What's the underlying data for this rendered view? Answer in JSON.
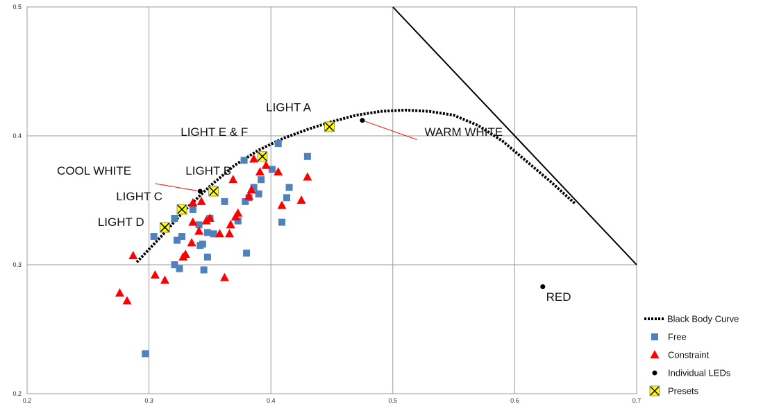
{
  "chart_data": {
    "type": "scatter",
    "xlim": [
      0.2,
      0.7
    ],
    "ylim": [
      0.2,
      0.5
    ],
    "x_ticks": [
      "0.2",
      "0.3",
      "0.4",
      "0.5",
      "0.6",
      "0.7"
    ],
    "y_ticks": [
      "0.2",
      "0.3",
      "0.4",
      "0.5"
    ],
    "grid": true,
    "legend_position": "bottom-right",
    "legend": [
      "Black Body Curve",
      "Free",
      "Constraint",
      "Individual LEDs",
      "Presets"
    ],
    "series": [
      {
        "name": "Black Body Curve",
        "kind": "dotted-line",
        "color": "#000000",
        "points": [
          [
            0.29,
            0.302
          ],
          [
            0.31,
            0.322
          ],
          [
            0.33,
            0.343
          ],
          [
            0.35,
            0.361
          ],
          [
            0.37,
            0.377
          ],
          [
            0.39,
            0.389
          ],
          [
            0.41,
            0.398
          ],
          [
            0.43,
            0.405
          ],
          [
            0.45,
            0.411
          ],
          [
            0.47,
            0.416
          ],
          [
            0.49,
            0.419
          ],
          [
            0.51,
            0.42
          ],
          [
            0.53,
            0.419
          ],
          [
            0.55,
            0.416
          ],
          [
            0.57,
            0.408
          ],
          [
            0.59,
            0.396
          ],
          [
            0.61,
            0.38
          ],
          [
            0.63,
            0.364
          ],
          [
            0.65,
            0.347
          ]
        ]
      },
      {
        "name": "Free",
        "kind": "square",
        "color": "#4f81bd",
        "points": [
          [
            0.297,
            0.231
          ],
          [
            0.304,
            0.322
          ],
          [
            0.321,
            0.3
          ],
          [
            0.321,
            0.336
          ],
          [
            0.323,
            0.319
          ],
          [
            0.325,
            0.297
          ],
          [
            0.327,
            0.322
          ],
          [
            0.336,
            0.343
          ],
          [
            0.341,
            0.331
          ],
          [
            0.342,
            0.315
          ],
          [
            0.344,
            0.316
          ],
          [
            0.345,
            0.296
          ],
          [
            0.348,
            0.306
          ],
          [
            0.348,
            0.325
          ],
          [
            0.35,
            0.336
          ],
          [
            0.353,
            0.324
          ],
          [
            0.362,
            0.349
          ],
          [
            0.373,
            0.334
          ],
          [
            0.378,
            0.381
          ],
          [
            0.379,
            0.349
          ],
          [
            0.38,
            0.309
          ],
          [
            0.382,
            0.352
          ],
          [
            0.386,
            0.36
          ],
          [
            0.39,
            0.355
          ],
          [
            0.392,
            0.366
          ],
          [
            0.401,
            0.374
          ],
          [
            0.406,
            0.394
          ],
          [
            0.409,
            0.333
          ],
          [
            0.413,
            0.352
          ],
          [
            0.415,
            0.36
          ],
          [
            0.43,
            0.384
          ]
        ]
      },
      {
        "name": "Constraint",
        "kind": "triangle",
        "color": "#ff0000",
        "points": [
          [
            0.276,
            0.278
          ],
          [
            0.282,
            0.272
          ],
          [
            0.287,
            0.307
          ],
          [
            0.305,
            0.292
          ],
          [
            0.313,
            0.288
          ],
          [
            0.328,
            0.306
          ],
          [
            0.33,
            0.308
          ],
          [
            0.335,
            0.317
          ],
          [
            0.336,
            0.333
          ],
          [
            0.336,
            0.348
          ],
          [
            0.341,
            0.326
          ],
          [
            0.343,
            0.349
          ],
          [
            0.347,
            0.334
          ],
          [
            0.35,
            0.336
          ],
          [
            0.354,
            0.358
          ],
          [
            0.358,
            0.324
          ],
          [
            0.362,
            0.29
          ],
          [
            0.366,
            0.324
          ],
          [
            0.367,
            0.331
          ],
          [
            0.369,
            0.366
          ],
          [
            0.371,
            0.337
          ],
          [
            0.373,
            0.34
          ],
          [
            0.382,
            0.353
          ],
          [
            0.384,
            0.358
          ],
          [
            0.386,
            0.382
          ],
          [
            0.391,
            0.372
          ],
          [
            0.396,
            0.377
          ],
          [
            0.406,
            0.372
          ],
          [
            0.409,
            0.346
          ],
          [
            0.425,
            0.35
          ],
          [
            0.43,
            0.368
          ]
        ]
      },
      {
        "name": "Individual LEDs",
        "kind": "dot",
        "color": "#000000",
        "points": [
          [
            0.342,
            0.357
          ],
          [
            0.475,
            0.412
          ],
          [
            0.623,
            0.283
          ]
        ]
      },
      {
        "name": "Presets",
        "kind": "x-square",
        "color": "#ffff00",
        "points": [
          [
            0.313,
            0.329
          ],
          [
            0.327,
            0.343
          ],
          [
            0.353,
            0.357
          ],
          [
            0.393,
            0.384
          ],
          [
            0.448,
            0.407
          ]
        ]
      }
    ],
    "boundary_line": [
      [
        0.5,
        0.5
      ],
      [
        0.7,
        0.3
      ]
    ],
    "annotations": [
      {
        "text": "LIGHT A",
        "x": 0.396,
        "y": 0.419,
        "anchor": "start",
        "color": "#111111"
      },
      {
        "text": "LIGHT E & F",
        "x": 0.326,
        "y": 0.4,
        "anchor": "start",
        "color": "#111111"
      },
      {
        "text": "COOL WHITE",
        "x": 0.255,
        "y": 0.37,
        "anchor": "middle",
        "color": "#111111"
      },
      {
        "text": "LIGHT B",
        "x": 0.33,
        "y": 0.37,
        "anchor": "start",
        "color": "#111111"
      },
      {
        "text": "LIGHT C",
        "x": 0.273,
        "y": 0.35,
        "anchor": "start",
        "color": "#111111"
      },
      {
        "text": "LIGHT D",
        "x": 0.258,
        "y": 0.33,
        "anchor": "start",
        "color": "#111111"
      },
      {
        "text": "WARM WHITE",
        "x": 0.526,
        "y": 0.4,
        "anchor": "start",
        "color": "#111111"
      },
      {
        "text": "RED",
        "x": 0.636,
        "y": 0.272,
        "anchor": "middle",
        "color": "#ff0000"
      }
    ],
    "leaders": [
      [
        [
          0.342,
          0.357
        ],
        [
          0.305,
          0.363
        ]
      ],
      [
        [
          0.475,
          0.412
        ],
        [
          0.52,
          0.397
        ]
      ]
    ]
  }
}
